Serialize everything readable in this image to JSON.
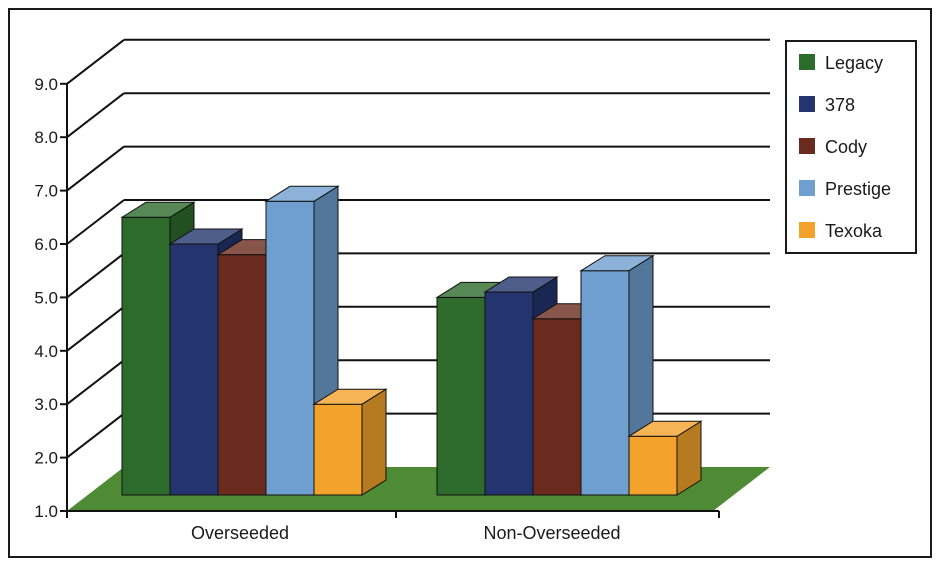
{
  "chart_data": {
    "type": "bar",
    "title": "",
    "xlabel": "",
    "ylabel": "",
    "categories": [
      "Overseeded",
      "Non-Overseeded"
    ],
    "ylim": [
      1.0,
      9.0
    ],
    "yticks": [
      "1.0",
      "2.0",
      "3.0",
      "4.0",
      "5.0",
      "6.0",
      "7.0",
      "8.0",
      "9.0"
    ],
    "grid": true,
    "three_d": true,
    "legend_position": "top-right",
    "floor_color": "#4f8a35",
    "series": [
      {
        "name": "Legacy",
        "color": "#2d6b2c",
        "values": [
          6.5,
          5.0
        ]
      },
      {
        "name": "378",
        "color": "#23346e",
        "values": [
          6.0,
          5.1
        ]
      },
      {
        "name": "Cody",
        "color": "#6a2a1e",
        "values": [
          5.8,
          4.6
        ]
      },
      {
        "name": "Prestige",
        "color": "#6f9fcf",
        "values": [
          6.8,
          5.5
        ]
      },
      {
        "name": "Texoka",
        "color": "#f3a32c",
        "values": [
          3.0,
          2.4
        ]
      }
    ]
  }
}
